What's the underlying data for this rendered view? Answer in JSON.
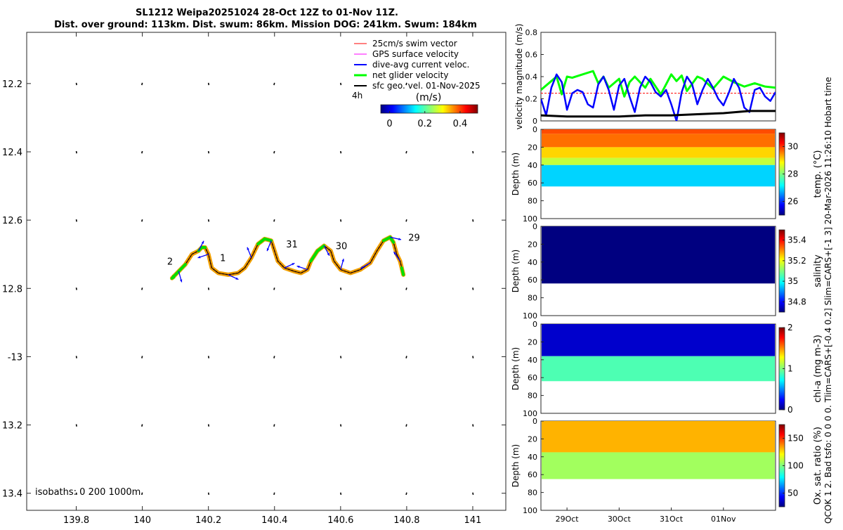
{
  "title_line1": "SL1212 Weipa20251024 28-Oct 12Z to 01-Nov 11Z.",
  "title_line2": "Dist. over ground: 113km. Dist. swum: 86km. Mission DOG: 241km. Swum: 184km",
  "side_note": "QCOK 1  2. Bad tsfo: 0  0  0  0. Tlim=CARS+[-0.4 0.2] Slim=CARS+[-1 3] 20-Mar-2026 11:26:10 Hobart time",
  "colors": {
    "swim": "#ff0000",
    "gps": "#ff00ff",
    "dive": "#0000ff",
    "net": "#00ff00",
    "sfc": "#000000",
    "track_fill": "#f0a000",
    "speed": "#888888"
  },
  "chart_data": [
    {
      "id": "map",
      "type": "scatter",
      "title": "SL1212 Weipa20251024 28-Oct 12Z to 01-Nov 11Z.",
      "xlim": [
        139.65,
        141.1
      ],
      "ylim": [
        -13.45,
        -12.05
      ],
      "xticks": [
        139.8,
        140,
        140.2,
        140.4,
        140.6,
        140.8,
        141
      ],
      "xtick_labels": [
        "139.8",
        "140",
        "140.2",
        "140.4",
        "140.6",
        "140.8",
        "141"
      ],
      "yticks": [
        -12.2,
        -12.4,
        -12.6,
        -12.8,
        -13,
        -13.2,
        -13.4
      ],
      "ytick_labels": [
        "12.2",
        "12.4",
        "12.6",
        "12.8",
        "-13",
        "13.2",
        "13.4"
      ],
      "legend": [
        {
          "label": "25cm/s swim vector",
          "color": "#ff0000"
        },
        {
          "label": "GPS surface velocity",
          "color": "#ff00ff"
        },
        {
          "label": "dive-avg current veloc.",
          "color": "#0000ff"
        },
        {
          "label": "net glider velocity",
          "color": "#00ff00"
        },
        {
          "label": "sfc geo. vel. 01-Nov-2025",
          "color": "#000000"
        }
      ],
      "legend_location": "top-right",
      "colorbar": {
        "label": "(m/s)",
        "ticks": [
          0,
          0.2,
          0.4
        ],
        "tick_labels": [
          "0",
          "0.2",
          "0.4"
        ],
        "range": [
          -0.05,
          0.5
        ]
      },
      "scale_label": "4h",
      "isobaths_label": "isobaths: 0   200  1000m",
      "track": [
        [
          140.09,
          -12.77
        ],
        [
          140.11,
          -12.75
        ],
        [
          140.13,
          -12.73
        ],
        [
          140.15,
          -12.7
        ],
        [
          140.17,
          -12.69
        ],
        [
          140.18,
          -12.68
        ],
        [
          140.19,
          -12.68
        ],
        [
          140.2,
          -12.7
        ],
        [
          140.21,
          -12.74
        ],
        [
          140.23,
          -12.755
        ],
        [
          140.26,
          -12.76
        ],
        [
          140.29,
          -12.755
        ],
        [
          140.31,
          -12.74
        ],
        [
          140.33,
          -12.71
        ],
        [
          140.35,
          -12.67
        ],
        [
          140.37,
          -12.655
        ],
        [
          140.39,
          -12.66
        ],
        [
          140.4,
          -12.69
        ],
        [
          140.41,
          -12.72
        ],
        [
          140.43,
          -12.74
        ],
        [
          140.46,
          -12.75
        ],
        [
          140.48,
          -12.755
        ],
        [
          140.5,
          -12.745
        ],
        [
          140.51,
          -12.72
        ],
        [
          140.53,
          -12.69
        ],
        [
          140.55,
          -12.675
        ],
        [
          140.57,
          -12.69
        ],
        [
          140.58,
          -12.72
        ],
        [
          140.6,
          -12.745
        ],
        [
          140.63,
          -12.755
        ],
        [
          140.66,
          -12.745
        ],
        [
          140.69,
          -12.725
        ],
        [
          140.71,
          -12.69
        ],
        [
          140.73,
          -12.66
        ],
        [
          140.75,
          -12.65
        ],
        [
          140.76,
          -12.665
        ],
        [
          140.77,
          -12.7
        ],
        [
          140.78,
          -12.72
        ],
        [
          140.785,
          -12.74
        ],
        [
          140.79,
          -12.76
        ]
      ],
      "track_labels": [
        {
          "text": "2",
          "lon": 140.075,
          "lat": -12.72
        },
        {
          "text": "1",
          "lon": 140.235,
          "lat": -12.71
        },
        {
          "text": "31",
          "lon": 140.435,
          "lat": -12.67
        },
        {
          "text": "30",
          "lon": 140.585,
          "lat": -12.675
        },
        {
          "text": "29",
          "lon": 140.805,
          "lat": -12.65
        }
      ]
    },
    {
      "id": "velocity",
      "type": "line",
      "ylabel": "velocity magnitude (m/s)",
      "ylim": [
        0,
        0.8
      ],
      "yticks": [
        0,
        0.2,
        0.4,
        0.6,
        0.8
      ],
      "ytick_labels": [
        "0",
        "0.2",
        "0.4",
        "0.6",
        "0.8"
      ],
      "xlim": [
        28.5,
        33.0
      ],
      "series": [
        {
          "name": "25cm/s swim vector",
          "color": "#ff0000",
          "x": [
            28.5,
            33.0
          ],
          "values": [
            0.25,
            0.25
          ]
        },
        {
          "name": "net glider velocity",
          "color": "#00ff00",
          "x": [
            28.5,
            28.7,
            28.8,
            28.9,
            29.0,
            29.1,
            29.3,
            29.5,
            29.6,
            29.7,
            29.8,
            30.0,
            30.1,
            30.2,
            30.3,
            30.5,
            30.6,
            30.8,
            31.0,
            31.1,
            31.2,
            31.3,
            31.5,
            31.6,
            31.8,
            32.0,
            32.2,
            32.4,
            32.6,
            32.8,
            33.0
          ],
          "values": [
            0.28,
            0.36,
            0.4,
            0.24,
            0.4,
            0.39,
            0.42,
            0.45,
            0.34,
            0.4,
            0.3,
            0.38,
            0.22,
            0.35,
            0.4,
            0.3,
            0.38,
            0.24,
            0.42,
            0.36,
            0.41,
            0.27,
            0.4,
            0.38,
            0.29,
            0.4,
            0.35,
            0.31,
            0.34,
            0.31,
            0.3
          ]
        },
        {
          "name": "dive-avg current veloc.",
          "color": "#0000ff",
          "x": [
            28.5,
            28.6,
            28.7,
            28.8,
            28.9,
            29.0,
            29.1,
            29.2,
            29.3,
            29.4,
            29.5,
            29.6,
            29.7,
            29.8,
            29.9,
            30.0,
            30.1,
            30.2,
            30.3,
            30.4,
            30.5,
            30.6,
            30.7,
            30.8,
            30.9,
            31.0,
            31.1,
            31.2,
            31.3,
            31.4,
            31.5,
            31.6,
            31.7,
            31.8,
            31.9,
            32.0,
            32.1,
            32.2,
            32.3,
            32.4,
            32.5,
            32.6,
            32.7,
            32.8,
            32.9,
            33.0
          ],
          "values": [
            0.2,
            0.05,
            0.3,
            0.42,
            0.35,
            0.1,
            0.25,
            0.28,
            0.26,
            0.15,
            0.12,
            0.33,
            0.4,
            0.28,
            0.1,
            0.32,
            0.38,
            0.22,
            0.08,
            0.3,
            0.4,
            0.35,
            0.26,
            0.22,
            0.28,
            0.15,
            0.0,
            0.26,
            0.4,
            0.33,
            0.15,
            0.28,
            0.38,
            0.3,
            0.2,
            0.14,
            0.25,
            0.38,
            0.3,
            0.12,
            0.08,
            0.28,
            0.3,
            0.22,
            0.18,
            0.26
          ]
        },
        {
          "name": "sfc geo. vel.",
          "color": "#000000",
          "x": [
            28.5,
            29.0,
            29.5,
            30.0,
            30.5,
            31.0,
            31.5,
            32.0,
            32.5,
            33.0
          ],
          "values": [
            0.05,
            0.04,
            0.04,
            0.04,
            0.05,
            0.05,
            0.06,
            0.07,
            0.09,
            0.09
          ]
        }
      ]
    },
    {
      "id": "temp",
      "type": "heatmap",
      "ylabel": "Depth (m)",
      "ylim": [
        100,
        0
      ],
      "yticks": [
        0,
        20,
        40,
        60,
        80,
        100
      ],
      "ytick_labels": [
        "0",
        "20",
        "40",
        "60",
        "80",
        "100"
      ],
      "colorbar_label": "temp. (°C)",
      "colorbar_range": [
        25,
        31
      ],
      "colorbar_ticks": [
        26,
        28,
        30
      ],
      "colorbar_tick_labels": [
        "26",
        "28",
        "30"
      ],
      "layers": [
        {
          "top": 0,
          "bottom": 5,
          "value": 29.8
        },
        {
          "top": 5,
          "bottom": 20,
          "value": 29.6
        },
        {
          "top": 20,
          "bottom": 32,
          "value": 29.0
        },
        {
          "top": 32,
          "bottom": 40,
          "value": 28.4
        },
        {
          "top": 40,
          "bottom": 64,
          "value": 27.0
        }
      ]
    },
    {
      "id": "salinity",
      "type": "heatmap",
      "ylabel": "Depth (m)",
      "ylim": [
        100,
        0
      ],
      "yticks": [
        0,
        20,
        40,
        60,
        80,
        100
      ],
      "ytick_labels": [
        "0",
        "20",
        "40",
        "60",
        "80",
        "100"
      ],
      "colorbar_label": "salinity",
      "colorbar_range": [
        34.7,
        35.5
      ],
      "colorbar_ticks": [
        34.8,
        35,
        35.2,
        35.4
      ],
      "colorbar_tick_labels": [
        "34.8",
        "35",
        "35.2",
        "35.4"
      ],
      "layers": [
        {
          "top": 0,
          "bottom": 64,
          "value": 34.5
        }
      ]
    },
    {
      "id": "chla",
      "type": "heatmap",
      "ylabel": "Depth (m)",
      "ylim": [
        100,
        0
      ],
      "yticks": [
        0,
        20,
        40,
        60,
        80,
        100
      ],
      "ytick_labels": [
        "0",
        "20",
        "40",
        "60",
        "80",
        "100"
      ],
      "colorbar_label": "chl-a (mg m-3)",
      "colorbar_range": [
        0,
        2
      ],
      "colorbar_ticks": [
        0,
        1,
        2
      ],
      "colorbar_tick_labels": [
        "0",
        "1",
        "2"
      ],
      "layers": [
        {
          "top": 0,
          "bottom": 36,
          "value": 0.15
        },
        {
          "top": 36,
          "bottom": 64,
          "value": 0.9
        }
      ]
    },
    {
      "id": "oxygen",
      "type": "heatmap",
      "ylabel": "Depth (m)",
      "ylim": [
        100,
        0
      ],
      "yticks": [
        0,
        20,
        40,
        60,
        80,
        100
      ],
      "ytick_labels": [
        "0",
        "20",
        "40",
        "60",
        "80",
        "100"
      ],
      "colorbar_label": "Ox. sat. ratio (%)",
      "colorbar_range": [
        25,
        175
      ],
      "colorbar_ticks": [
        50,
        100,
        150
      ],
      "colorbar_tick_labels": [
        "50",
        "100",
        "150"
      ],
      "layers": [
        {
          "top": 0,
          "bottom": 35,
          "value": 130
        },
        {
          "top": 35,
          "bottom": 65,
          "value": 105
        }
      ],
      "xtick_labels": [
        "29Oct",
        "30Oct",
        "31Oct",
        "01Nov"
      ]
    }
  ]
}
